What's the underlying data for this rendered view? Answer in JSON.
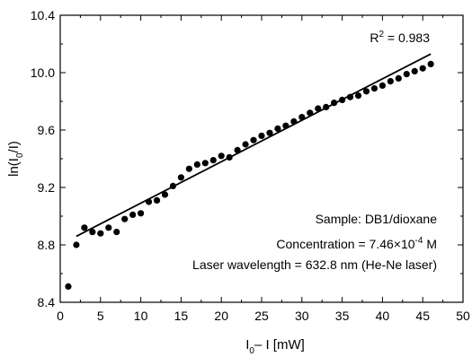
{
  "chart_data": {
    "type": "scatter",
    "xlabel_main": "I",
    "xlabel_sub": "0",
    "xlabel_rest": "– I [mW]",
    "ylabel_pre": "ln(I",
    "ylabel_sub": "0",
    "ylabel_post": "/I)",
    "xlim": [
      0,
      50
    ],
    "ylim": [
      8.4,
      10.4
    ],
    "xticks": [
      0,
      5,
      10,
      15,
      20,
      25,
      30,
      35,
      40,
      45,
      50
    ],
    "xtick_labels": [
      "0",
      "5",
      "10",
      "15",
      "20",
      "25",
      "30",
      "35",
      "40",
      "45",
      "50"
    ],
    "yticks": [
      8.4,
      8.8,
      9.2,
      9.6,
      10.0,
      10.4
    ],
    "ytick_labels": [
      "8.4",
      "8.8",
      "9.2",
      "9.6",
      "10.0",
      "10.4"
    ],
    "r2_prefix": "R",
    "r2_exp": "2",
    "r2_value": " = 0.983",
    "annotation_line1": "Sample: DB1/dioxane",
    "annotation_line2_prefix": "Concentration = 7.46×10",
    "annotation_line2_exp": "-4",
    "annotation_line2_suffix": " M",
    "annotation_line3": "Laser wavelength = 632.8 nm (He-Ne laser)",
    "points": {
      "x": [
        1,
        2,
        3,
        4,
        5,
        6,
        7,
        8,
        9,
        10,
        11,
        12,
        13,
        14,
        15,
        16,
        17,
        18,
        19,
        20,
        21,
        22,
        23,
        24,
        25,
        26,
        27,
        28,
        29,
        30,
        31,
        32,
        33,
        34,
        35,
        36,
        37,
        38,
        39,
        40,
        41,
        42,
        43,
        44,
        45,
        46
      ],
      "y": [
        8.51,
        8.8,
        8.92,
        8.89,
        8.88,
        8.92,
        8.89,
        8.98,
        9.01,
        9.02,
        9.1,
        9.11,
        9.15,
        9.21,
        9.27,
        9.33,
        9.36,
        9.37,
        9.39,
        9.42,
        9.41,
        9.46,
        9.5,
        9.53,
        9.56,
        9.58,
        9.61,
        9.63,
        9.66,
        9.69,
        9.72,
        9.75,
        9.76,
        9.79,
        9.81,
        9.83,
        9.84,
        9.87,
        9.89,
        9.91,
        9.94,
        9.96,
        9.99,
        10.01,
        10.03,
        10.06
      ]
    },
    "fit_line": {
      "x": [
        2,
        46
      ],
      "y": [
        8.86,
        10.13
      ]
    },
    "colors": {
      "points": "#000000",
      "line": "#000000",
      "axes": "#000000"
    }
  }
}
